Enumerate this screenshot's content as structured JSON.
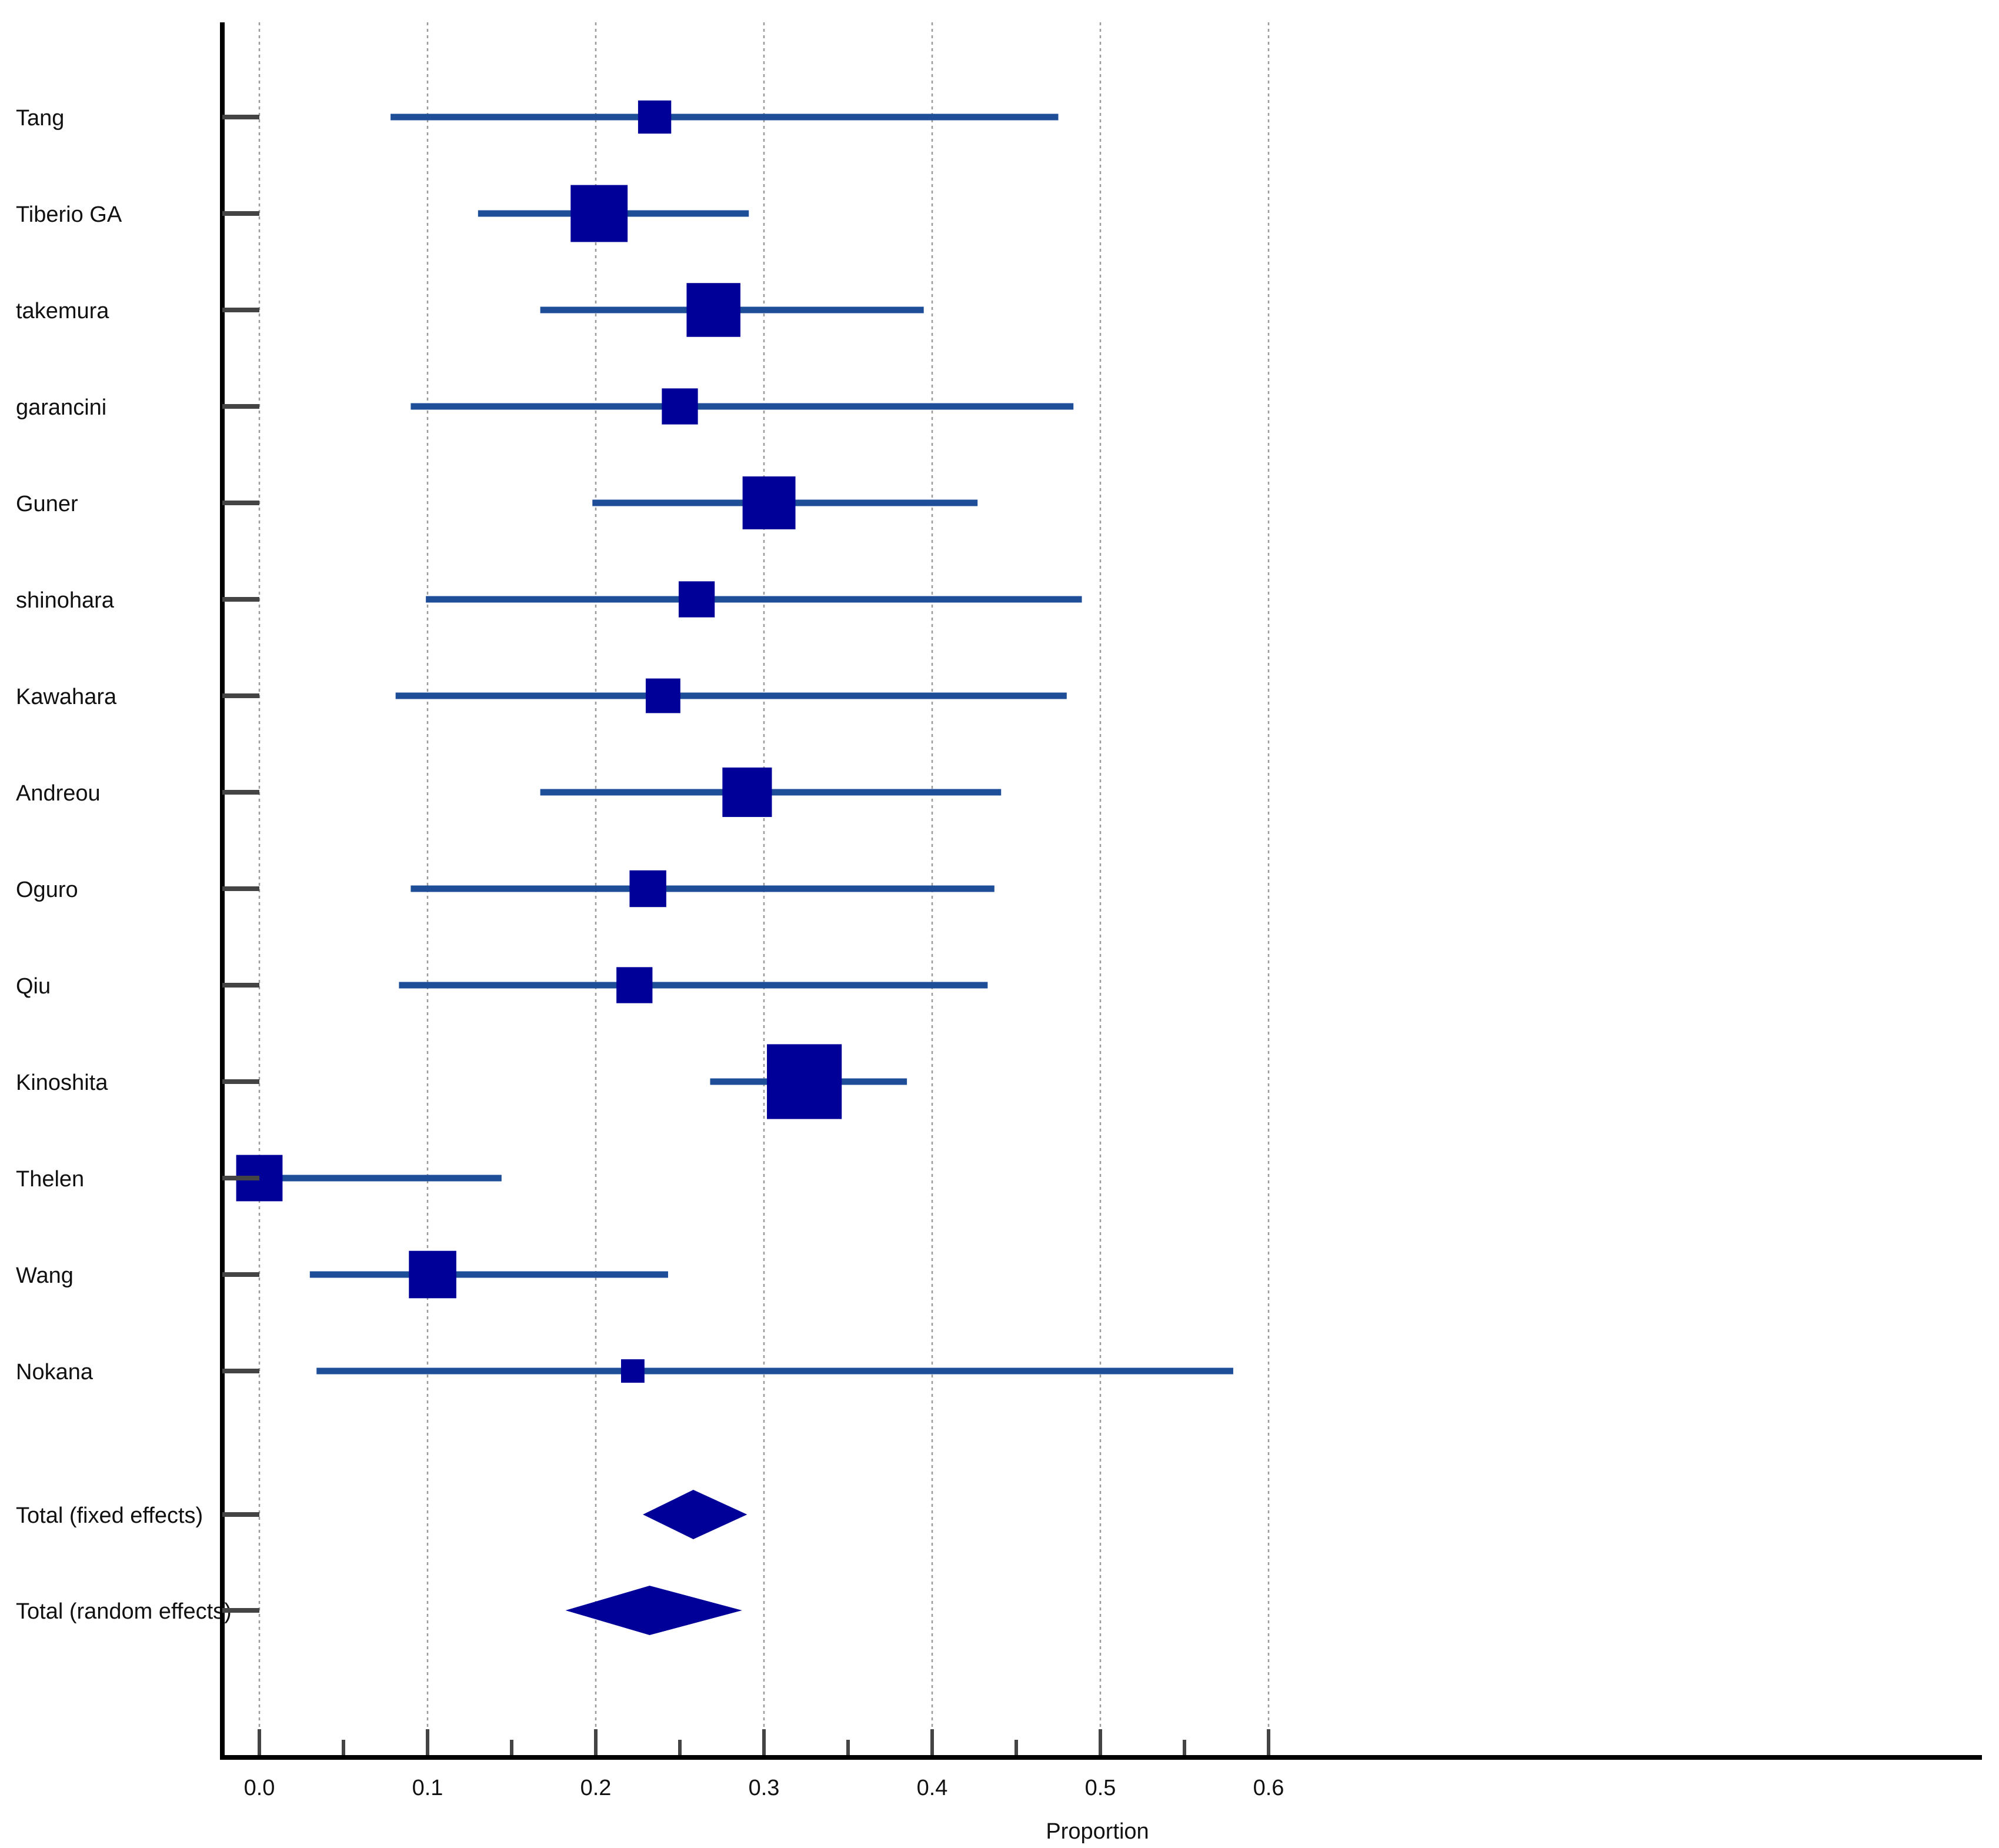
{
  "chart_data": {
    "type": "forest",
    "xlabel": "Proportion",
    "xlim": [
      -0.0135,
      0.6
    ],
    "x_ticks": [
      "0.0",
      "0.1",
      "0.2",
      "0.3",
      "0.4",
      "0.5",
      "0.6"
    ],
    "x_minor_ticks": [
      0.05,
      0.15,
      0.25,
      0.35,
      0.45,
      0.55
    ],
    "grid": "vertical dotted lines at major ticks",
    "colors": {
      "ci_line": "#1f4e99",
      "marker": "#000099",
      "axis": "#000000",
      "tick": "#444444"
    },
    "studies": [
      {
        "label": "Tang",
        "estimate": 0.235,
        "lower": 0.078,
        "upper": 0.475,
        "weight": 2.2
      },
      {
        "label": "Tiberio GA",
        "estimate": 0.202,
        "lower": 0.13,
        "upper": 0.291,
        "weight": 6.5
      },
      {
        "label": "takemura",
        "estimate": 0.27,
        "lower": 0.167,
        "upper": 0.395,
        "weight": 5.8
      },
      {
        "label": "garancini",
        "estimate": 0.25,
        "lower": 0.09,
        "upper": 0.484,
        "weight": 2.6
      },
      {
        "label": "Guner",
        "estimate": 0.303,
        "lower": 0.198,
        "upper": 0.427,
        "weight": 5.6
      },
      {
        "label": "shinohara",
        "estimate": 0.26,
        "lower": 0.099,
        "upper": 0.489,
        "weight": 2.6
      },
      {
        "label": "Kawahara",
        "estimate": 0.24,
        "lower": 0.081,
        "upper": 0.48,
        "weight": 2.4
      },
      {
        "label": "Andreou",
        "estimate": 0.29,
        "lower": 0.167,
        "upper": 0.441,
        "weight": 4.9
      },
      {
        "label": "Oguro",
        "estimate": 0.231,
        "lower": 0.09,
        "upper": 0.437,
        "weight": 2.7
      },
      {
        "label": "Qiu",
        "estimate": 0.223,
        "lower": 0.083,
        "upper": 0.433,
        "weight": 2.6
      },
      {
        "label": "Kinoshita",
        "estimate": 0.324,
        "lower": 0.268,
        "upper": 0.385,
        "weight": 11.2
      },
      {
        "label": "Thelen",
        "estimate": 0.0,
        "lower": 0.0,
        "upper": 0.144,
        "weight": 4.3
      },
      {
        "label": "Wang",
        "estimate": 0.103,
        "lower": 0.03,
        "upper": 0.243,
        "weight": 4.5
      },
      {
        "label": "Nokana",
        "estimate": 0.222,
        "lower": 0.034,
        "upper": 0.579,
        "weight": 1.1
      }
    ],
    "totals": [
      {
        "label": "Total (fixed effects)",
        "estimate": 0.258,
        "lower": 0.228,
        "upper": 0.29
      },
      {
        "label": "Total (random effects)",
        "estimate": 0.232,
        "lower": 0.182,
        "upper": 0.287
      }
    ]
  }
}
